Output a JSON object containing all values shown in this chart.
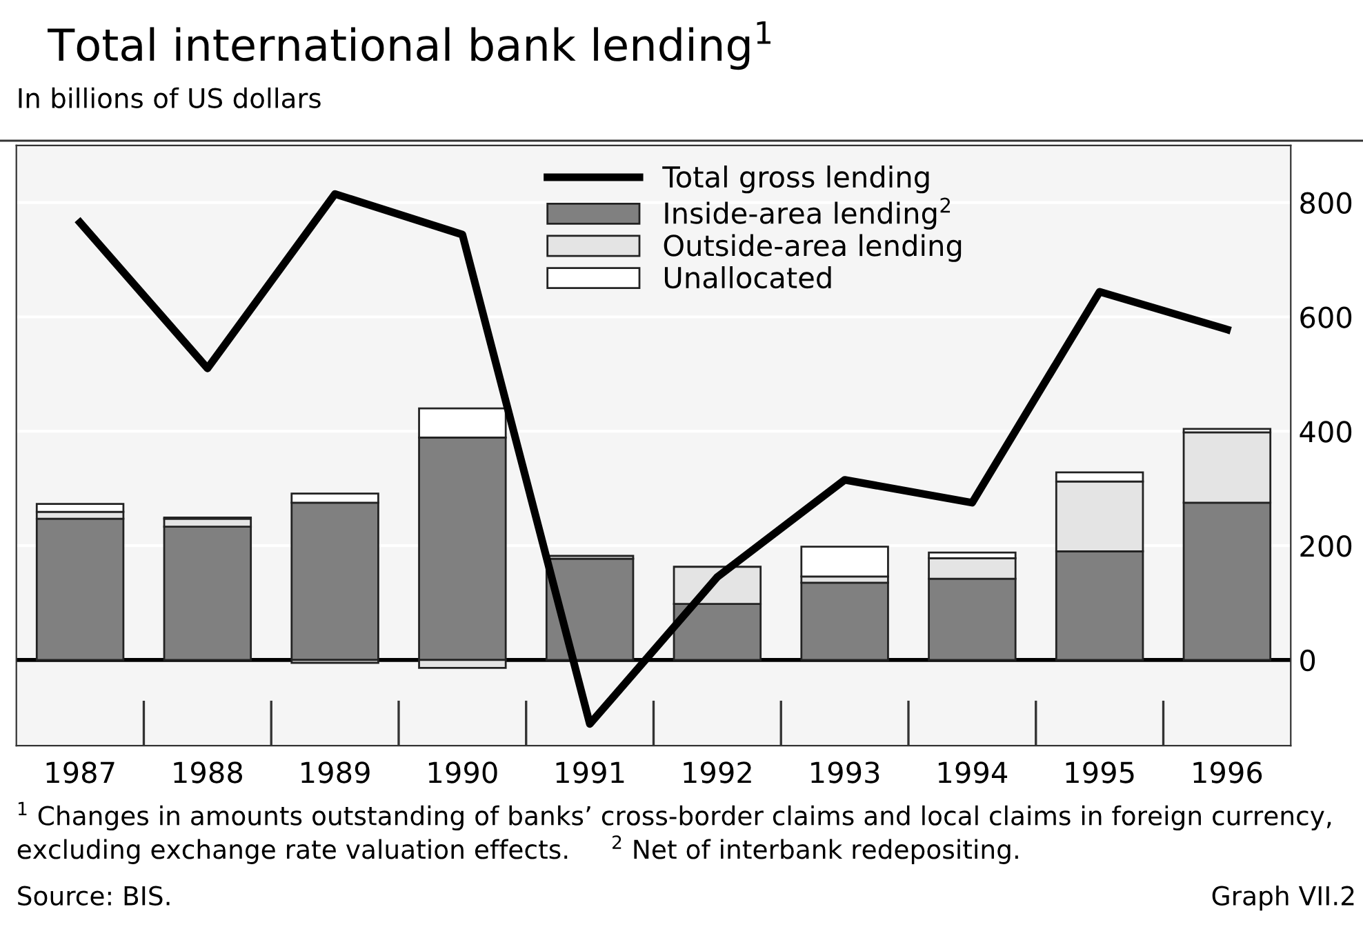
{
  "chart_data": {
    "type": "bar",
    "stacked": true,
    "title": "Total international bank lending$^{1}$",
    "subtitle": "In billions of US dollars",
    "categories": [
      "1987",
      "1988",
      "1989",
      "1990",
      "1991",
      "1992",
      "1993",
      "1994",
      "1995",
      "1996"
    ],
    "series": [
      {
        "name": "Inside-area lending$^{2}$",
        "color": "#808080",
        "values": [
          247,
          233,
          275,
          389,
          177,
          98,
          135,
          142,
          190,
          275
        ]
      },
      {
        "name": "Outside-area lending",
        "color": "#e4e4e4",
        "values": [
          12,
          14,
          -5,
          -14,
          5,
          65,
          11,
          36,
          122,
          123
        ]
      },
      {
        "name": "Unallocated",
        "color": "#ffffff",
        "values": [
          14,
          2,
          16,
          51,
          null,
          null,
          52,
          10,
          16,
          6
        ]
      },
      {
        "name": "Total gross lending",
        "type": "line",
        "color": "#000000",
        "values": [
          765,
          510,
          815,
          744,
          -112,
          145,
          315,
          275,
          644,
          578
        ]
      }
    ],
    "ylim": [
      -150,
      900
    ],
    "yticks": [
      0,
      200,
      400,
      600,
      800
    ],
    "grid": "y",
    "legend": "top",
    "annotations": [
      "$^{1}$ Changes in amounts outstanding of banks’ cross-border claims and local claims in foreign currency, excluding exchange rate valuation effects.     $^{2}$ Net of interbank redepositing.",
      "Source: BIS.",
      "Graph VII.2"
    ]
  }
}
